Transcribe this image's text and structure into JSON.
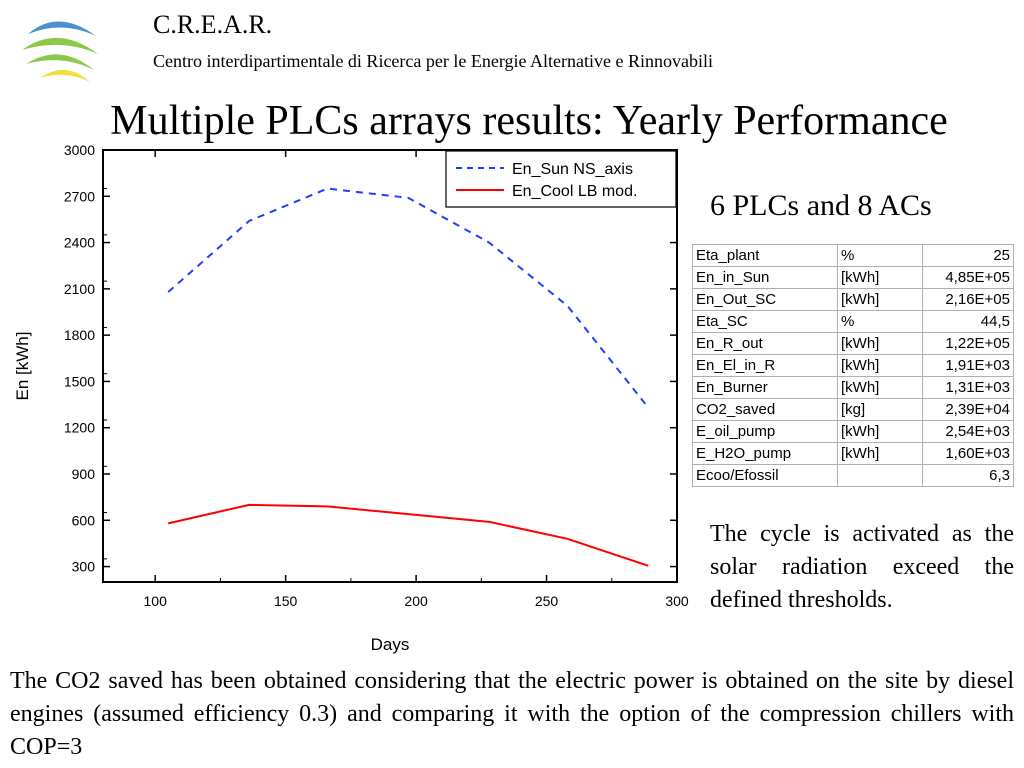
{
  "header": {
    "org_name": "C.R.E.A.R.",
    "org_full_name": "Centro interdipartimentale di Ricerca per le Energie Alternative  e Rinnovabili"
  },
  "slide": {
    "title": "Multiple PLCs arrays results:  Yearly Performance"
  },
  "colors": {
    "logo_blue": "#4a8fd0",
    "logo_green": "#8cc84b",
    "logo_yellow": "#f2e03a",
    "series_sun": "#1f3fff",
    "series_cool": "#ff0000",
    "table_border": "#b0b0b0"
  },
  "chart_data": {
    "type": "line",
    "xlabel": "Days",
    "ylabel": "En [kWh]",
    "xlim": [
      80,
      300
    ],
    "ylim": [
      200,
      3000
    ],
    "x_ticks": [
      100,
      150,
      200,
      250,
      300
    ],
    "y_ticks": [
      300,
      600,
      900,
      1200,
      1500,
      1800,
      2100,
      2400,
      2700,
      3000
    ],
    "grid": false,
    "legend": "top-right",
    "series": [
      {
        "name": "En_Sun NS_axis",
        "style": "dashed",
        "color": "#1f3fff",
        "x": [
          105,
          136,
          166,
          197,
          228,
          258,
          289
        ],
        "y": [
          2080,
          2540,
          2750,
          2690,
          2400,
          1990,
          1330
        ]
      },
      {
        "name": "En_Cool LB mod.",
        "style": "solid",
        "color": "#ff0000",
        "x": [
          105,
          136,
          166,
          197,
          228,
          258,
          289
        ],
        "y": [
          580,
          700,
          690,
          640,
          590,
          480,
          305
        ]
      }
    ]
  },
  "table": {
    "caption": "6 PLCs and 8 ACs",
    "rows": [
      [
        "Eta_plant",
        "%",
        "25"
      ],
      [
        "En_in_Sun",
        "[kWh]",
        "4,85E+05"
      ],
      [
        "En_Out_SC",
        "[kWh]",
        "2,16E+05"
      ],
      [
        "Eta_SC",
        "%",
        "44,5"
      ],
      [
        "En_R_out",
        "[kWh]",
        "1,22E+05"
      ],
      [
        "En_El_in_R",
        "[kWh]",
        "1,91E+03"
      ],
      [
        "En_Burner",
        "[kWh]",
        "1,31E+03"
      ],
      [
        "CO2_saved",
        "[kg]",
        "2,39E+04"
      ],
      [
        "E_oil_pump",
        "[kWh]",
        "2,54E+03"
      ],
      [
        "E_H2O_pump",
        "[kWh]",
        "1,60E+03"
      ],
      [
        "Ecoo/Efossil",
        "",
        "6,3"
      ]
    ]
  },
  "notes": {
    "cycle": "The cycle is activated as the solar radiation exceed the defined thresholds.",
    "co2": "The CO2 saved has been obtained considering that the electric power is obtained on the site by diesel engines (assumed efficiency 0.3) and comparing it with the option of the compression chillers with COP=3"
  }
}
